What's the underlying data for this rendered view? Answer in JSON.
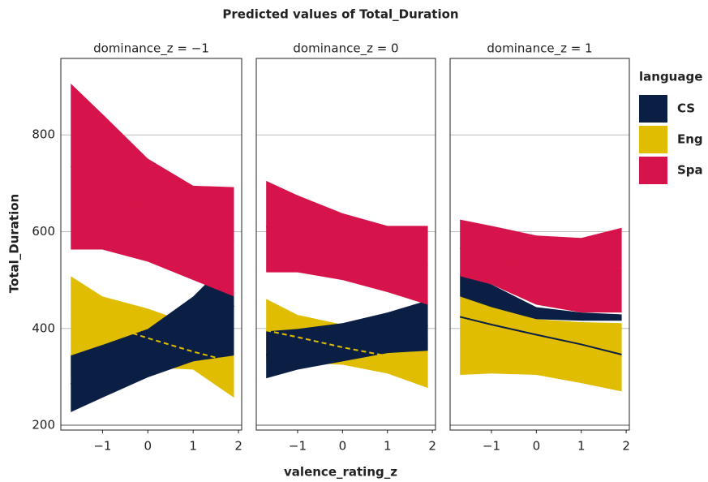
{
  "chart_data": {
    "type": "ribbon",
    "title": "Predicted values of Total_Duration",
    "xlabel": "valence_rating_z",
    "ylabel": "Total_Duration",
    "legend_title": "language",
    "x": [
      -1.7,
      -1,
      0,
      1,
      1.9
    ],
    "xlim": [
      -1.92,
      2.07
    ],
    "xticks": [
      {
        "value": -1,
        "label": "−1"
      },
      0,
      1,
      2
    ],
    "ylim": [
      190,
      958
    ],
    "yticks": [
      200,
      400,
      600,
      800
    ],
    "grid": true,
    "series": [
      {
        "name": "CS",
        "color": "#0b1f45",
        "dashed": false
      },
      {
        "name": "Eng",
        "color": "#e0bd00",
        "dashed": true
      },
      {
        "name": "Spa",
        "color": "#d6134a",
        "dashed": false
      }
    ],
    "panels": [
      {
        "title": "dominance_z = −1",
        "values": [
          [
            285,
            312,
            349,
            399,
            447
          ],
          [
            430,
            410,
            380,
            352,
            330
          ],
          [
            735,
            703,
            645,
            598,
            579
          ]
        ],
        "lower": [
          [
            227,
            257,
            299,
            332,
            344
          ],
          [
            300,
            310,
            320,
            315,
            257
          ],
          [
            563,
            563,
            538,
            500,
            466
          ]
        ],
        "upper": [
          [
            344,
            366,
            399,
            466,
            550
          ],
          [
            508,
            466,
            441,
            408,
            391
          ],
          [
            906,
            843,
            751,
            695,
            692
          ]
        ]
      },
      {
        "title": "dominance_z = 0",
        "values": [
          [
            345,
            357,
            372,
            391,
            406
          ],
          [
            396,
            382,
            361,
            343,
            330
          ],
          [
            610,
            596,
            569,
            543,
            530
          ]
        ],
        "lower": [
          [
            297,
            315,
            332,
            349,
            354
          ],
          [
            330,
            330,
            325,
            307,
            277
          ],
          [
            516,
            516,
            500,
            475,
            449
          ]
        ],
        "upper": [
          [
            394,
            399,
            411,
            433,
            458
          ],
          [
            461,
            428,
            408,
            391,
            374
          ],
          [
            705,
            675,
            638,
            612,
            612
          ]
        ]
      },
      {
        "title": "dominance_z = 1",
        "values": [
          [
            424,
            408,
            387,
            367,
            346
          ],
          [
            385,
            378,
            361,
            350,
            340
          ],
          [
            566,
            551,
            520,
            510,
            520
          ]
        ],
        "lower": [
          [
            466,
            444,
            419,
            416,
            416
          ],
          [
            304,
            307,
            304,
            287,
            270
          ],
          [
            508,
            491,
            449,
            433,
            433
          ]
        ],
        "upper": [
          [
            513,
            491,
            444,
            433,
            429
          ],
          [
            466,
            449,
            419,
            413,
            411
          ],
          [
            625,
            612,
            592,
            587,
            608
          ]
        ]
      }
    ]
  }
}
